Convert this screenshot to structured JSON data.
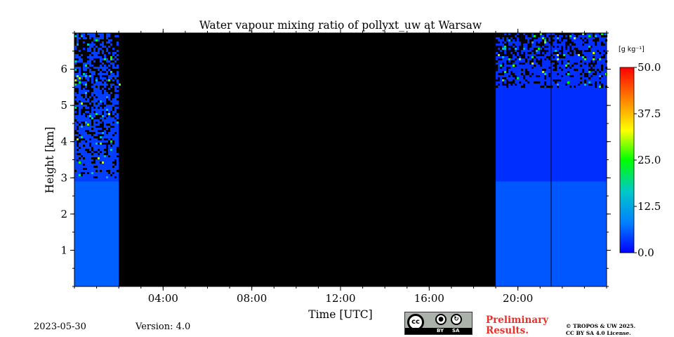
{
  "chart_data": {
    "type": "heatmap",
    "title": "Water vapour mixing ratio of pollyxt_uw at Warsaw",
    "xlabel": "Time [UTC]",
    "ylabel": "Height [km]",
    "x_range_hours": [
      0,
      24
    ],
    "ylim_km": [
      0,
      7
    ],
    "x_ticks": [
      {
        "hour": 4,
        "label": "04:00"
      },
      {
        "hour": 8,
        "label": "08:00"
      },
      {
        "hour": 12,
        "label": "12:00"
      },
      {
        "hour": 16,
        "label": "16:00"
      },
      {
        "hour": 20,
        "label": "20:00"
      }
    ],
    "y_ticks": [
      {
        "value": 1,
        "label": "1"
      },
      {
        "value": 2,
        "label": "2"
      },
      {
        "value": 3,
        "label": "3"
      },
      {
        "value": 4,
        "label": "4"
      },
      {
        "value": 5,
        "label": "5"
      },
      {
        "value": 6,
        "label": "6"
      }
    ],
    "no_data_intervals_hours": [
      [
        2.0,
        19.0
      ]
    ],
    "data_intervals": [
      {
        "start_hour": 0.0,
        "end_hour": 2.0,
        "noise_above_km": 3.0,
        "surface_value": 6.5,
        "aloft_value": 4.0
      },
      {
        "start_hour": 19.0,
        "end_hour": 24.0,
        "noise_above_km": 5.5,
        "surface_value": 6.0,
        "aloft_value": 3.0
      }
    ],
    "profile_break_hour": 21.5,
    "colorbar": {
      "unit": "[g kg⁻¹]",
      "min": 0.0,
      "max": 50.0,
      "ticks": [
        "0.0",
        "12.5",
        "25.0",
        "37.5",
        "50.0"
      ],
      "colors": [
        "#0000ff",
        "#0080ff",
        "#00c8c8",
        "#00ff00",
        "#ffff00",
        "#ff8000",
        "#ff0000"
      ]
    }
  },
  "footer": {
    "date": "2023-05-30",
    "version": "Version: 4.0",
    "preliminary": [
      "Preliminary",
      "Results."
    ],
    "copyright": [
      "© TROPOS & UW 2025.",
      "CC BY SA 4.0 License."
    ],
    "license_badge": {
      "main": "cc",
      "by": "BY",
      "sa": "SA"
    }
  },
  "colors": {
    "preliminary": "#e8302c",
    "nodata": "#000000"
  }
}
